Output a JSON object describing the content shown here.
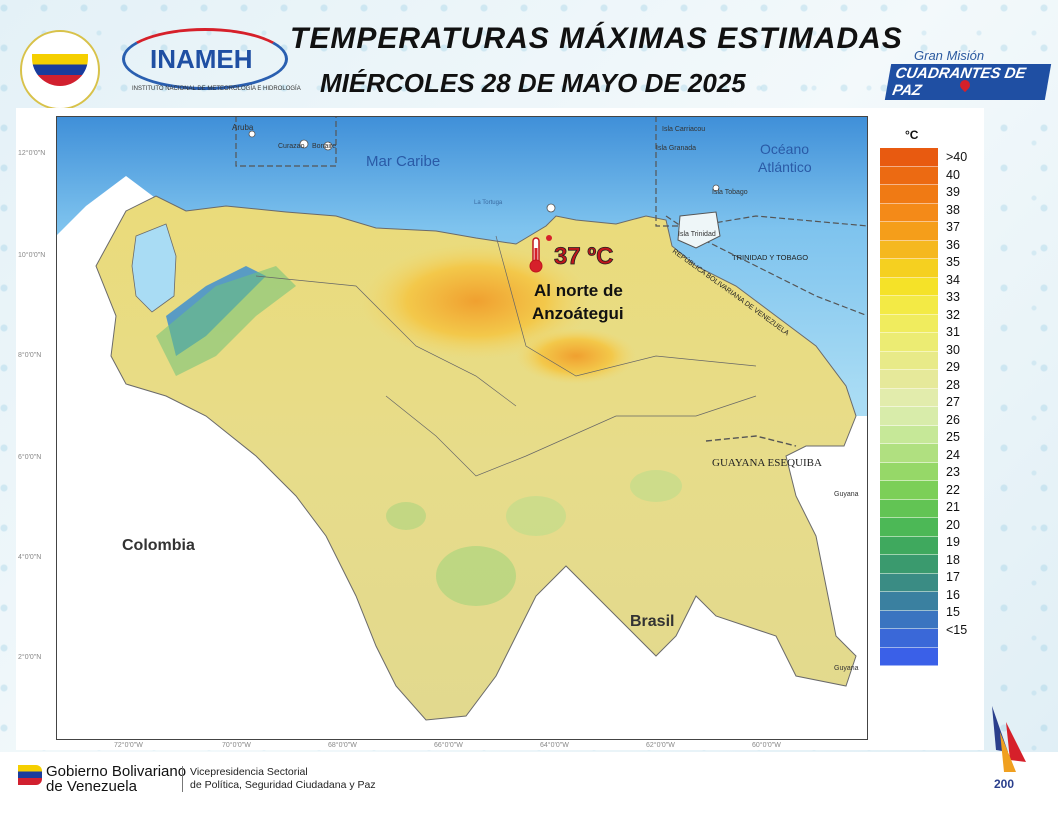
{
  "header": {
    "title": "TEMPERATURAS MÁXIMAS ESTIMADAS",
    "subtitle": "MIÉRCOLES 28 DE MAYO DE 2025",
    "inameh_logo": "INAMEH",
    "inameh_sub": "INSTITUTO NACIONAL DE METEOROLOGÍA E HIDROLOGÍA",
    "gmcp_line1": "Gran Misión",
    "gmcp_line2": "CUADRANTES DE PAZ"
  },
  "map": {
    "labels": {
      "mar_caribe": "Mar Caribe",
      "oceano": "Océano",
      "atlantico": "Atlántico",
      "colombia": "Colombia",
      "brasil": "Brasil",
      "guayana_esequiba": "GUAYANA ESEQUIBA",
      "guyana1": "Guyana",
      "guyana2": "Guyana",
      "trinidad_tobago": "TRINIDAD Y TOBAGO",
      "rep_bol": "REPÚBLICA BOLIVARIANA DE VENEZUELA",
      "aruba": "Aruba",
      "curazao": "Curazao",
      "bonaire": "Bonaire",
      "la_tortuga": "La Tortuga",
      "isla_carriacou": "Isla Carriacou",
      "isla_granada": "Isla Granada",
      "isla_tobago": "Isla Tobago",
      "isla_trinidad": "Isla Trinidad"
    },
    "highlight": {
      "temp": "37 ºC",
      "line1": "Al norte de",
      "line2": "Anzoátegui"
    },
    "lat_ticks": [
      "12°0'0\"N",
      "10°0'0\"N",
      "8°0'0\"N",
      "6°0'0\"N",
      "4°0'0\"N",
      "2°0'0\"N"
    ],
    "lon_ticks": [
      "72°0'0\"W",
      "70°0'0\"W",
      "68°0'0\"W",
      "66°0'0\"W",
      "64°0'0\"W",
      "62°0'0\"W",
      "60°0'0\"W"
    ]
  },
  "legend": {
    "unit": "°C",
    "labels": [
      ">40",
      "40",
      "39",
      "38",
      "37",
      "36",
      "35",
      "34",
      "33",
      "32",
      "31",
      "30",
      "29",
      "28",
      "27",
      "26",
      "25",
      "24",
      "23",
      "22",
      "21",
      "20",
      "19",
      "18",
      "17",
      "16",
      "15",
      "<15"
    ],
    "colors": [
      "#e85a10",
      "#ec6a12",
      "#f07a14",
      "#f48a18",
      "#f59e1a",
      "#f5b81f",
      "#f5d020",
      "#f5e228",
      "#f3ea45",
      "#f0ec5e",
      "#ecec73",
      "#e8ea88",
      "#e6e99a",
      "#e2ecac",
      "#d8ecaa",
      "#c6e898",
      "#b0e080",
      "#96d868",
      "#7ccf58",
      "#62c454",
      "#4cb856",
      "#3fa95e",
      "#3a9a6e",
      "#3a8c84",
      "#3a80a0",
      "#3a74c0",
      "#3a68d8",
      "#3a60e8"
    ]
  },
  "footer": {
    "gob_line1": "Gobierno Bolivariano",
    "gob_line2": "de Venezuela",
    "vice_line1": "Vicepresidencia Sectorial",
    "vice_line2": "de Política, Seguridad Ciudadana y Paz"
  }
}
